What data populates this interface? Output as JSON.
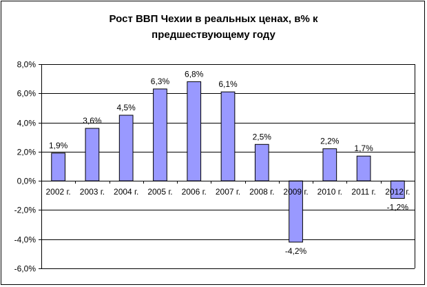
{
  "chart_data": {
    "type": "bar",
    "title_lines": [
      "Рост ВВП Чехии в реальных ценах, в% к",
      "предшествующему году"
    ],
    "categories": [
      "2002 г.",
      "2003 г.",
      "2004 г.",
      "2005 г.",
      "2006 г.",
      "2007 г.",
      "2008 г.",
      "2009 г.",
      "2010 г.",
      "2011 г.",
      "2012 г."
    ],
    "values": [
      1.9,
      3.6,
      4.5,
      6.3,
      6.8,
      6.1,
      2.5,
      -4.2,
      2.2,
      1.7,
      -1.2
    ],
    "data_labels": [
      "1,9%",
      "3,6%",
      "4,5%",
      "6,3%",
      "6,8%",
      "6,1%",
      "2,5%",
      "-4,2%",
      "2,2%",
      "1,7%",
      "-1,2%"
    ],
    "ylim": [
      -6,
      8
    ],
    "y_ticks": [
      8,
      6,
      4,
      2,
      0,
      -2,
      -4,
      -6
    ],
    "y_tick_labels": [
      "8,0%",
      "6,0%",
      "4,0%",
      "2,0%",
      "0,0%",
      "-2,0%",
      "-4,0%",
      "-6,0%"
    ],
    "xlabel": "",
    "ylabel": "",
    "grid": true,
    "legend": "none",
    "colors": {
      "bar_fill": "#9999ff",
      "bar_stroke": "#000000",
      "grid": "#000000"
    }
  }
}
